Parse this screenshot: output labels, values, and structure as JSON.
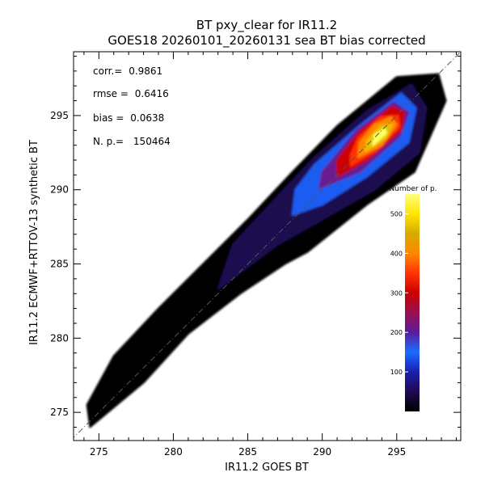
{
  "chart_data": {
    "type": "heatmap",
    "title": "BT pxy_clear for IR11.2",
    "subtitle": "GOES18 20260101_20260131 sea BT bias corrected",
    "xlabel": "IR11.2 GOES BT",
    "ylabel": "IR11.2 ECMWF+RTTOV-13 synthetic BT",
    "xlim": [
      273.3,
      299.3
    ],
    "ylim": [
      273.1,
      299.3
    ],
    "x_ticks": [
      275,
      280,
      285,
      290,
      295
    ],
    "y_ticks": [
      275,
      280,
      285,
      290,
      295
    ],
    "one_to_one_line": true,
    "grid": false,
    "stats": [
      {
        "label": "corr.=",
        "value": "0.9861"
      },
      {
        "label": "rmse =",
        "value": "0.6416"
      },
      {
        "label": "bias =",
        "value": "0.0638"
      },
      {
        "label": "N. p.=",
        "value": "150464"
      }
    ],
    "colorbar": {
      "label": "Number of p.",
      "range": [
        0,
        550
      ],
      "ticks": [
        100,
        200,
        300,
        400,
        500
      ],
      "colors": [
        "#000000",
        "#1e0a50",
        "#1a1fb0",
        "#1a6cff",
        "#5a1c9c",
        "#9a1050",
        "#cc0000",
        "#ff3300",
        "#ff8800",
        "#d6aa00",
        "#ffe600",
        "#ffff80"
      ]
    },
    "density_bands": [
      {
        "level": 5,
        "color": "#000000",
        "path": [
          [
            274.4,
            274.0
          ],
          [
            278.0,
            277.0
          ],
          [
            281.0,
            280.3
          ],
          [
            284.5,
            283.0
          ],
          [
            287.5,
            285.0
          ],
          [
            289.0,
            285.8
          ],
          [
            293.0,
            289.0
          ],
          [
            296.2,
            291.2
          ],
          [
            298.3,
            296.0
          ],
          [
            297.8,
            297.8
          ],
          [
            295.0,
            297.6
          ],
          [
            291.0,
            294.3
          ],
          [
            288.0,
            291.2
          ],
          [
            285.0,
            288.0
          ],
          [
            282.0,
            285.0
          ],
          [
            279.0,
            282.0
          ],
          [
            276.0,
            278.8
          ],
          [
            274.2,
            275.5
          ]
        ]
      },
      {
        "level": 30,
        "color": "#1e0a50",
        "path": [
          [
            283.0,
            283.3
          ],
          [
            287.0,
            286.3
          ],
          [
            290.0,
            288.0
          ],
          [
            293.5,
            290.0
          ],
          [
            296.5,
            292.5
          ],
          [
            297.0,
            295.5
          ],
          [
            296.0,
            297.1
          ],
          [
            293.0,
            295.3
          ],
          [
            289.5,
            292.2
          ],
          [
            286.5,
            289.0
          ],
          [
            284.0,
            286.3
          ]
        ]
      },
      {
        "level": 90,
        "color": "#1a5cf0",
        "path": [
          [
            288.0,
            288.3
          ],
          [
            290.0,
            289.0
          ],
          [
            293.0,
            290.9
          ],
          [
            295.8,
            293.2
          ],
          [
            296.3,
            295.5
          ],
          [
            295.3,
            296.5
          ],
          [
            292.5,
            294.3
          ],
          [
            289.5,
            291.7
          ],
          [
            288.2,
            290.0
          ]
        ]
      },
      {
        "level": 180,
        "color": "#6a1a90",
        "path": [
          [
            289.8,
            290.1
          ],
          [
            292.5,
            291.2
          ],
          [
            295.2,
            293.6
          ],
          [
            295.8,
            295.2
          ],
          [
            294.8,
            295.9
          ],
          [
            292.3,
            294.0
          ],
          [
            290.0,
            291.2
          ]
        ]
      },
      {
        "level": 250,
        "color": "#cc0000",
        "path": [
          [
            291.0,
            290.9
          ],
          [
            293.0,
            292.0
          ],
          [
            295.3,
            294.0
          ],
          [
            295.5,
            295.2
          ],
          [
            294.7,
            295.6
          ],
          [
            292.5,
            293.9
          ],
          [
            291.0,
            292.0
          ]
        ]
      },
      {
        "level": 320,
        "color": "#ff3300",
        "path": [
          [
            291.9,
            291.6
          ],
          [
            293.6,
            292.6
          ],
          [
            295.2,
            294.2
          ],
          [
            295.1,
            295.0
          ],
          [
            293.9,
            294.9
          ],
          [
            292.4,
            293.5
          ],
          [
            291.9,
            292.3
          ]
        ]
      },
      {
        "level": 420,
        "color": "#ff8800",
        "path": [
          [
            292.4,
            292.2
          ],
          [
            294.0,
            293.0
          ],
          [
            295.0,
            294.4
          ],
          [
            294.6,
            294.9
          ],
          [
            293.5,
            294.4
          ],
          [
            292.5,
            293.2
          ]
        ]
      },
      {
        "level": 480,
        "color": "#e8c000",
        "path": [
          [
            292.9,
            292.6
          ],
          [
            294.3,
            293.5
          ],
          [
            294.7,
            294.4
          ],
          [
            293.9,
            294.3
          ],
          [
            293.0,
            293.3
          ]
        ]
      },
      {
        "level": 540,
        "color": "#ffff60",
        "path": [
          [
            293.4,
            293.0
          ],
          [
            294.3,
            293.8
          ],
          [
            294.2,
            294.1
          ],
          [
            293.5,
            293.7
          ]
        ]
      }
    ]
  }
}
